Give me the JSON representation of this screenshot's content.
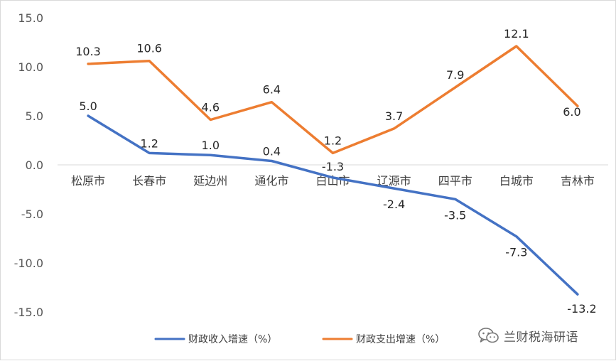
{
  "chart_data": {
    "type": "line",
    "title": "",
    "xlabel": "",
    "ylabel": "",
    "categories": [
      "松原市",
      "长春市",
      "延边州",
      "通化市",
      "白山市",
      "辽源市",
      "四平市",
      "白城市",
      "吉林市"
    ],
    "ylim": [
      -15,
      15
    ],
    "yticks": [
      15,
      10,
      5,
      0,
      -5,
      -10,
      -15
    ],
    "ytick_labels": [
      "15.0",
      "10.0",
      "5.0",
      "0.0",
      "-5.0",
      "-10.0",
      "-15.0"
    ],
    "grid": false,
    "legend_position": "bottom",
    "series": [
      {
        "name": "财政收入增速（%）",
        "color": "#4472C4",
        "values": [
          5.0,
          1.2,
          1.0,
          0.4,
          -1.3,
          -2.4,
          -3.5,
          -7.3,
          -13.2
        ],
        "labels": [
          "5.0",
          "1.2",
          "1.0",
          "0.4",
          "-1.3",
          "-2.4",
          "-3.5",
          "-7.3",
          "-13.2"
        ]
      },
      {
        "name": "财政支出增速（%）",
        "color": "#ED7D31",
        "values": [
          10.3,
          10.6,
          4.6,
          6.4,
          1.2,
          3.7,
          7.9,
          12.1,
          6.0
        ],
        "labels": [
          "10.3",
          "10.6",
          "4.6",
          "6.4",
          "1.2",
          "3.7",
          "7.9",
          "12.1",
          "6.0"
        ]
      }
    ]
  },
  "watermark": {
    "icon": "wechat-icon",
    "text": "兰财税海研语"
  }
}
